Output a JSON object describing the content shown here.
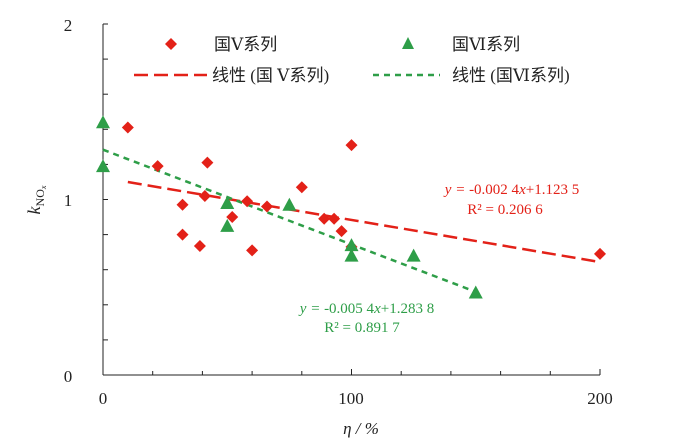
{
  "chart_data": {
    "type": "scatter",
    "title": "",
    "xlabel": "η / %",
    "ylabel_main": "k",
    "ylabel_sub": "NO",
    "ylabel_subsub": "x",
    "xlim": [
      0,
      200
    ],
    "ylim": [
      0,
      2
    ],
    "x_ticks": [
      0,
      100,
      200
    ],
    "y_ticks": [
      0,
      1,
      2
    ],
    "x_minor_step": 20,
    "y_minor_step": 0.2,
    "grid": false,
    "legend_position": "top",
    "colors": {
      "series1": "#e32118",
      "series2": "#2e9e48",
      "axis": "#222222"
    },
    "series": [
      {
        "name": "国Ⅴ系列",
        "marker": "diamond",
        "points": [
          [
            10,
            1.41
          ],
          [
            22,
            1.19
          ],
          [
            42,
            1.21
          ],
          [
            41,
            1.02
          ],
          [
            32,
            0.97
          ],
          [
            58,
            0.99
          ],
          [
            66,
            0.96
          ],
          [
            52,
            0.9
          ],
          [
            32,
            0.8
          ],
          [
            39,
            0.735
          ],
          [
            60,
            0.71
          ],
          [
            80,
            1.07
          ],
          [
            100,
            1.31
          ],
          [
            89,
            0.89
          ],
          [
            93,
            0.89
          ],
          [
            96,
            0.82
          ],
          [
            100,
            0.73
          ],
          [
            200,
            0.69
          ]
        ]
      },
      {
        "name": "国Ⅵ系列",
        "marker": "triangle",
        "points": [
          [
            0,
            1.44
          ],
          [
            0,
            1.19
          ],
          [
            50,
            0.98
          ],
          [
            50,
            0.85
          ],
          [
            75,
            0.97
          ],
          [
            100,
            0.74
          ],
          [
            100,
            0.68
          ],
          [
            125,
            0.68
          ],
          [
            150,
            0.47
          ]
        ]
      }
    ],
    "trendlines": [
      {
        "name": "线性 (国 Ⅴ系列)",
        "slope": -0.0024,
        "intercept": 1.1235,
        "x_range": [
          10,
          200
        ],
        "equation": "-0.002 4",
        "equation_tail": "+1.123 5",
        "r2_label": "R² = 0.206 6",
        "style": "long-dash"
      },
      {
        "name": "线性 (国Ⅵ系列)",
        "slope": -0.0054,
        "intercept": 1.2838,
        "x_range": [
          0,
          150
        ],
        "equation": "-0.005 4",
        "equation_tail": "+1.283 8",
        "r2_label": "R² = 0.891 7",
        "style": "short-dash"
      }
    ],
    "eq_prefix": "y = ",
    "eq_var": "x"
  }
}
